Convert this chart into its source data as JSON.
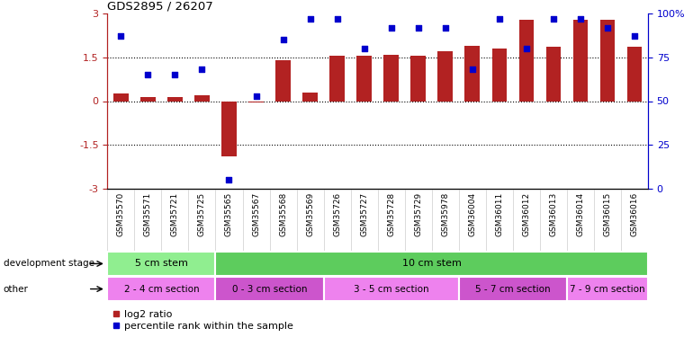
{
  "title": "GDS2895 / 26207",
  "samples": [
    "GSM35570",
    "GSM35571",
    "GSM35721",
    "GSM35725",
    "GSM35565",
    "GSM35567",
    "GSM35568",
    "GSM35569",
    "GSM35726",
    "GSM35727",
    "GSM35728",
    "GSM35729",
    "GSM35978",
    "GSM36004",
    "GSM36011",
    "GSM36012",
    "GSM36013",
    "GSM36014",
    "GSM36015",
    "GSM36016"
  ],
  "log2_ratio": [
    0.25,
    0.15,
    0.15,
    0.2,
    -1.9,
    -0.05,
    1.4,
    0.3,
    1.55,
    1.55,
    1.6,
    1.55,
    1.7,
    1.9,
    1.8,
    2.8,
    1.85,
    2.8,
    2.8,
    1.85
  ],
  "percentile": [
    87,
    65,
    65,
    68,
    5,
    53,
    85,
    97,
    97,
    80,
    92,
    92,
    92,
    68,
    97,
    80,
    97,
    97,
    92,
    87
  ],
  "bar_color": "#b22222",
  "dot_color": "#0000cd",
  "ylim_left": [
    -3,
    3
  ],
  "ylim_right": [
    0,
    100
  ],
  "yticks_left": [
    -3,
    -1.5,
    0,
    1.5,
    3
  ],
  "ytick_labels_left": [
    "-3",
    "-1.5",
    "0",
    "1.5",
    "3"
  ],
  "ytick_labels_right": [
    "0",
    "25",
    "50",
    "75",
    "100%"
  ],
  "hlines": [
    -1.5,
    0,
    1.5
  ],
  "dev_stage_groups": [
    {
      "label": "5 cm stem",
      "start": 0,
      "end": 4,
      "color": "#90ee90"
    },
    {
      "label": "10 cm stem",
      "start": 4,
      "end": 20,
      "color": "#5dcc5d"
    }
  ],
  "other_groups": [
    {
      "label": "2 - 4 cm section",
      "start": 0,
      "end": 4,
      "color": "#ee82ee"
    },
    {
      "label": "0 - 3 cm section",
      "start": 4,
      "end": 8,
      "color": "#cc55cc"
    },
    {
      "label": "3 - 5 cm section",
      "start": 8,
      "end": 13,
      "color": "#ee82ee"
    },
    {
      "label": "5 - 7 cm section",
      "start": 13,
      "end": 17,
      "color": "#cc55cc"
    },
    {
      "label": "7 - 9 cm section",
      "start": 17,
      "end": 20,
      "color": "#ee82ee"
    }
  ],
  "legend_items": [
    {
      "label": "log2 ratio",
      "color": "#b22222"
    },
    {
      "label": "percentile rank within the sample",
      "color": "#0000cd"
    }
  ],
  "dev_stage_label": "development stage",
  "other_label": "other",
  "background_color": "#ffffff",
  "bar_width": 0.55,
  "dot_size": 18
}
